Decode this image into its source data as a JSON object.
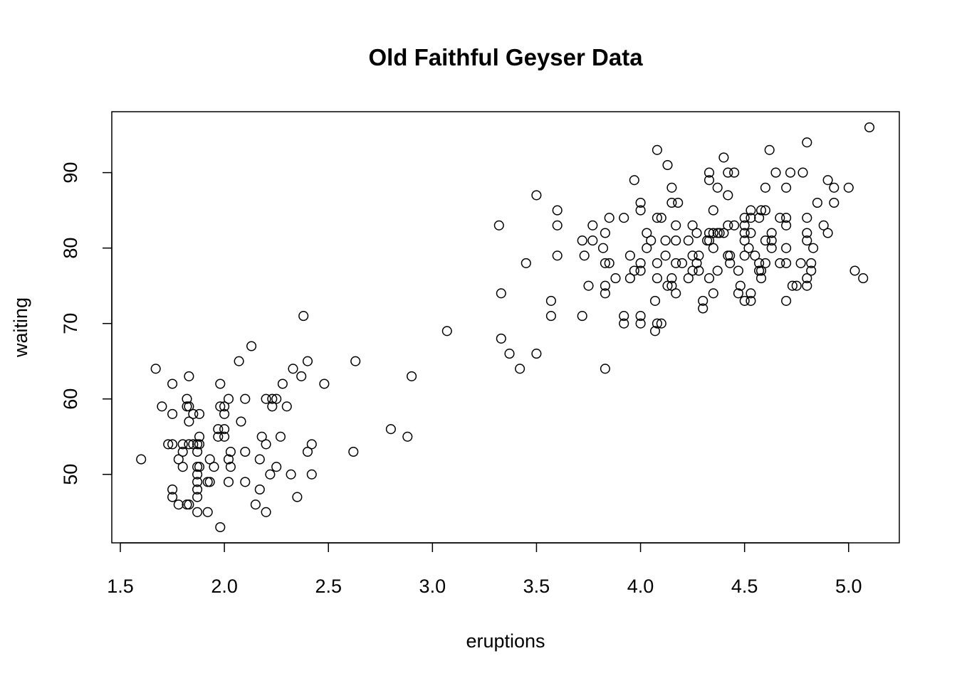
{
  "chart_data": {
    "type": "scatter",
    "title": "Old Faithful Geyser Data",
    "xlabel": "eruptions",
    "ylabel": "waiting",
    "xlim": [
      1.5,
      5.1
    ],
    "ylim": [
      43,
      96
    ],
    "x_ticks": [
      "1.5",
      "2.0",
      "2.5",
      "3.0",
      "3.5",
      "4.0",
      "4.5",
      "5.0"
    ],
    "y_ticks": [
      "50",
      "60",
      "70",
      "80",
      "90"
    ],
    "grid": false,
    "legend": "none",
    "marker": "open-circle",
    "points": [
      [
        1.6,
        52
      ],
      [
        1.67,
        64
      ],
      [
        1.7,
        59
      ],
      [
        1.73,
        54
      ],
      [
        1.75,
        54
      ],
      [
        1.75,
        48
      ],
      [
        1.75,
        47
      ],
      [
        1.75,
        58
      ],
      [
        1.75,
        62
      ],
      [
        1.78,
        52
      ],
      [
        1.78,
        46
      ],
      [
        1.8,
        53
      ],
      [
        1.8,
        51
      ],
      [
        1.8,
        54
      ],
      [
        1.82,
        60
      ],
      [
        1.82,
        59
      ],
      [
        1.82,
        46
      ],
      [
        1.83,
        54
      ],
      [
        1.83,
        46
      ],
      [
        1.83,
        63
      ],
      [
        1.83,
        57
      ],
      [
        1.83,
        59
      ],
      [
        1.85,
        58
      ],
      [
        1.85,
        54
      ],
      [
        1.87,
        53
      ],
      [
        1.87,
        51
      ],
      [
        1.87,
        50
      ],
      [
        1.87,
        49
      ],
      [
        1.87,
        48
      ],
      [
        1.87,
        47
      ],
      [
        1.87,
        45
      ],
      [
        1.87,
        54
      ],
      [
        1.88,
        58
      ],
      [
        1.88,
        55
      ],
      [
        1.88,
        54
      ],
      [
        1.88,
        51
      ],
      [
        1.92,
        49
      ],
      [
        1.92,
        45
      ],
      [
        1.93,
        52
      ],
      [
        1.93,
        49
      ],
      [
        1.95,
        51
      ],
      [
        1.97,
        56
      ],
      [
        1.97,
        55
      ],
      [
        1.98,
        62
      ],
      [
        1.98,
        59
      ],
      [
        1.98,
        43
      ],
      [
        2.0,
        59
      ],
      [
        2.0,
        58
      ],
      [
        2.0,
        56
      ],
      [
        2.0,
        55
      ],
      [
        2.02,
        60
      ],
      [
        2.02,
        52
      ],
      [
        2.02,
        49
      ],
      [
        2.03,
        53
      ],
      [
        2.03,
        51
      ],
      [
        2.07,
        65
      ],
      [
        2.08,
        57
      ],
      [
        2.1,
        60
      ],
      [
        2.1,
        53
      ],
      [
        2.1,
        49
      ],
      [
        2.13,
        67
      ],
      [
        2.15,
        46
      ],
      [
        2.17,
        52
      ],
      [
        2.17,
        48
      ],
      [
        2.18,
        55
      ],
      [
        2.2,
        60
      ],
      [
        2.2,
        54
      ],
      [
        2.2,
        45
      ],
      [
        2.22,
        50
      ],
      [
        2.23,
        60
      ],
      [
        2.23,
        59
      ],
      [
        2.25,
        60
      ],
      [
        2.25,
        51
      ],
      [
        2.27,
        55
      ],
      [
        2.28,
        62
      ],
      [
        2.3,
        59
      ],
      [
        2.32,
        50
      ],
      [
        2.33,
        64
      ],
      [
        2.35,
        47
      ],
      [
        2.37,
        63
      ],
      [
        2.38,
        71
      ],
      [
        2.4,
        65
      ],
      [
        2.4,
        53
      ],
      [
        2.42,
        54
      ],
      [
        2.42,
        50
      ],
      [
        2.48,
        62
      ],
      [
        2.62,
        53
      ],
      [
        2.63,
        65
      ],
      [
        2.8,
        56
      ],
      [
        2.88,
        55
      ],
      [
        2.9,
        63
      ],
      [
        3.07,
        69
      ],
      [
        3.32,
        83
      ],
      [
        3.33,
        74
      ],
      [
        3.33,
        68
      ],
      [
        3.37,
        66
      ],
      [
        3.42,
        64
      ],
      [
        3.45,
        78
      ],
      [
        3.5,
        87
      ],
      [
        3.5,
        66
      ],
      [
        3.57,
        73
      ],
      [
        3.57,
        71
      ],
      [
        3.6,
        85
      ],
      [
        3.6,
        83
      ],
      [
        3.6,
        79
      ],
      [
        3.72,
        81
      ],
      [
        3.72,
        71
      ],
      [
        3.73,
        79
      ],
      [
        3.75,
        75
      ],
      [
        3.77,
        83
      ],
      [
        3.77,
        81
      ],
      [
        3.82,
        80
      ],
      [
        3.83,
        82
      ],
      [
        3.83,
        78
      ],
      [
        3.83,
        75
      ],
      [
        3.83,
        74
      ],
      [
        3.83,
        64
      ],
      [
        3.85,
        84
      ],
      [
        3.85,
        78
      ],
      [
        3.88,
        76
      ],
      [
        3.92,
        84
      ],
      [
        3.92,
        71
      ],
      [
        3.92,
        70
      ],
      [
        3.95,
        79
      ],
      [
        3.95,
        76
      ],
      [
        3.97,
        89
      ],
      [
        3.97,
        77
      ],
      [
        4.0,
        86
      ],
      [
        4.0,
        85
      ],
      [
        4.0,
        78
      ],
      [
        4.0,
        77
      ],
      [
        4.0,
        71
      ],
      [
        4.0,
        70
      ],
      [
        4.03,
        82
      ],
      [
        4.03,
        80
      ],
      [
        4.05,
        81
      ],
      [
        4.07,
        73
      ],
      [
        4.07,
        69
      ],
      [
        4.08,
        93
      ],
      [
        4.08,
        84
      ],
      [
        4.08,
        78
      ],
      [
        4.08,
        76
      ],
      [
        4.08,
        70
      ],
      [
        4.1,
        84
      ],
      [
        4.1,
        70
      ],
      [
        4.12,
        81
      ],
      [
        4.12,
        79
      ],
      [
        4.13,
        91
      ],
      [
        4.13,
        75
      ],
      [
        4.15,
        88
      ],
      [
        4.15,
        86
      ],
      [
        4.15,
        76
      ],
      [
        4.15,
        75
      ],
      [
        4.17,
        83
      ],
      [
        4.17,
        81
      ],
      [
        4.17,
        78
      ],
      [
        4.17,
        74
      ],
      [
        4.18,
        86
      ],
      [
        4.2,
        78
      ],
      [
        4.23,
        81
      ],
      [
        4.23,
        76
      ],
      [
        4.25,
        83
      ],
      [
        4.25,
        79
      ],
      [
        4.25,
        77
      ],
      [
        4.27,
        82
      ],
      [
        4.27,
        78
      ],
      [
        4.28,
        79
      ],
      [
        4.28,
        77
      ],
      [
        4.3,
        73
      ],
      [
        4.3,
        72
      ],
      [
        4.32,
        81
      ],
      [
        4.33,
        90
      ],
      [
        4.33,
        89
      ],
      [
        4.33,
        82
      ],
      [
        4.33,
        81
      ],
      [
        4.33,
        76
      ],
      [
        4.35,
        85
      ],
      [
        4.35,
        82
      ],
      [
        4.35,
        80
      ],
      [
        4.35,
        74
      ],
      [
        4.37,
        88
      ],
      [
        4.37,
        82
      ],
      [
        4.37,
        77
      ],
      [
        4.38,
        82
      ],
      [
        4.4,
        92
      ],
      [
        4.4,
        82
      ],
      [
        4.42,
        90
      ],
      [
        4.42,
        87
      ],
      [
        4.42,
        83
      ],
      [
        4.42,
        79
      ],
      [
        4.43,
        79
      ],
      [
        4.43,
        78
      ],
      [
        4.45,
        90
      ],
      [
        4.45,
        83
      ],
      [
        4.47,
        77
      ],
      [
        4.47,
        74
      ],
      [
        4.48,
        75
      ],
      [
        4.5,
        84
      ],
      [
        4.5,
        83
      ],
      [
        4.5,
        82
      ],
      [
        4.5,
        81
      ],
      [
        4.5,
        79
      ],
      [
        4.5,
        73
      ],
      [
        4.52,
        80
      ],
      [
        4.53,
        85
      ],
      [
        4.53,
        84
      ],
      [
        4.53,
        82
      ],
      [
        4.53,
        74
      ],
      [
        4.53,
        73
      ],
      [
        4.55,
        79
      ],
      [
        4.57,
        84
      ],
      [
        4.57,
        78
      ],
      [
        4.57,
        77
      ],
      [
        4.58,
        85
      ],
      [
        4.58,
        77
      ],
      [
        4.58,
        76
      ],
      [
        4.6,
        88
      ],
      [
        4.6,
        85
      ],
      [
        4.6,
        81
      ],
      [
        4.6,
        78
      ],
      [
        4.62,
        93
      ],
      [
        4.63,
        82
      ],
      [
        4.63,
        81
      ],
      [
        4.63,
        80
      ],
      [
        4.65,
        90
      ],
      [
        4.67,
        84
      ],
      [
        4.67,
        78
      ],
      [
        4.7,
        88
      ],
      [
        4.7,
        84
      ],
      [
        4.7,
        83
      ],
      [
        4.7,
        80
      ],
      [
        4.7,
        78
      ],
      [
        4.7,
        73
      ],
      [
        4.72,
        90
      ],
      [
        4.73,
        75
      ],
      [
        4.75,
        75
      ],
      [
        4.77,
        78
      ],
      [
        4.78,
        90
      ],
      [
        4.8,
        94
      ],
      [
        4.8,
        84
      ],
      [
        4.8,
        82
      ],
      [
        4.8,
        81
      ],
      [
        4.8,
        76
      ],
      [
        4.8,
        75
      ],
      [
        4.82,
        78
      ],
      [
        4.82,
        77
      ],
      [
        4.83,
        80
      ],
      [
        4.85,
        86
      ],
      [
        4.88,
        83
      ],
      [
        4.9,
        89
      ],
      [
        4.9,
        82
      ],
      [
        4.93,
        88
      ],
      [
        4.93,
        86
      ],
      [
        5.0,
        88
      ],
      [
        5.03,
        77
      ],
      [
        5.07,
        76
      ],
      [
        5.1,
        96
      ]
    ]
  }
}
